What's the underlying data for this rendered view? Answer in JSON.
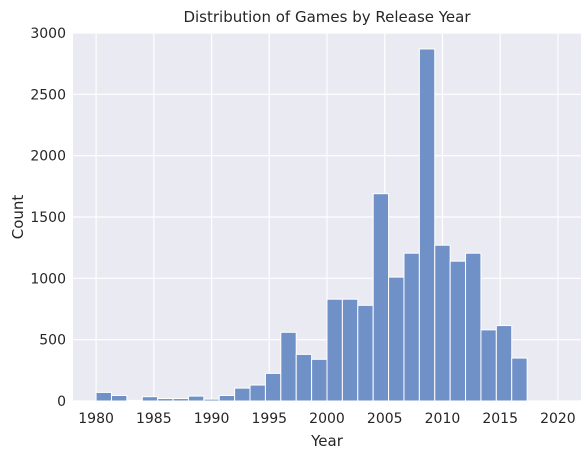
{
  "chart_data": {
    "type": "bar",
    "title": "Distribution of Games by Release Year",
    "xlabel": "Year",
    "ylabel": "Count",
    "xlim": [
      1978,
      2022
    ],
    "ylim": [
      0,
      3000
    ],
    "x_ticks": [
      1980,
      1985,
      1990,
      1995,
      2000,
      2005,
      2010,
      2015,
      2020
    ],
    "y_ticks": [
      0,
      500,
      1000,
      1500,
      2000,
      2500,
      3000
    ],
    "grid": true,
    "bin_width": 1.3333,
    "bins": [
      {
        "x0": 1980.0,
        "value": 70
      },
      {
        "x0": 1981.333,
        "value": 45
      },
      {
        "x0": 1982.667,
        "value": 5
      },
      {
        "x0": 1984.0,
        "value": 35
      },
      {
        "x0": 1985.333,
        "value": 20
      },
      {
        "x0": 1986.667,
        "value": 20
      },
      {
        "x0": 1988.0,
        "value": 40
      },
      {
        "x0": 1989.333,
        "value": 15
      },
      {
        "x0": 1990.667,
        "value": 45
      },
      {
        "x0": 1992.0,
        "value": 105
      },
      {
        "x0": 1993.333,
        "value": 130
      },
      {
        "x0": 1994.667,
        "value": 225
      },
      {
        "x0": 1996.0,
        "value": 560
      },
      {
        "x0": 1997.333,
        "value": 380
      },
      {
        "x0": 1998.667,
        "value": 340
      },
      {
        "x0": 2000.0,
        "value": 830
      },
      {
        "x0": 2001.333,
        "value": 830
      },
      {
        "x0": 2002.667,
        "value": 780
      },
      {
        "x0": 2004.0,
        "value": 1690
      },
      {
        "x0": 2005.333,
        "value": 1010
      },
      {
        "x0": 2006.667,
        "value": 1205
      },
      {
        "x0": 2008.0,
        "value": 2870
      },
      {
        "x0": 2009.333,
        "value": 1270
      },
      {
        "x0": 2010.667,
        "value": 1140
      },
      {
        "x0": 2012.0,
        "value": 1205
      },
      {
        "x0": 2013.333,
        "value": 580
      },
      {
        "x0": 2014.667,
        "value": 615
      },
      {
        "x0": 2016.0,
        "value": 350
      },
      {
        "x0": 2017.333,
        "value": 0
      },
      {
        "x0": 2018.667,
        "value": 0
      }
    ],
    "colors": {
      "bar_fill": "#7090c8",
      "bar_edge": "#ffffff",
      "plot_background": "#eaeaf2",
      "grid": "#ffffff"
    }
  }
}
